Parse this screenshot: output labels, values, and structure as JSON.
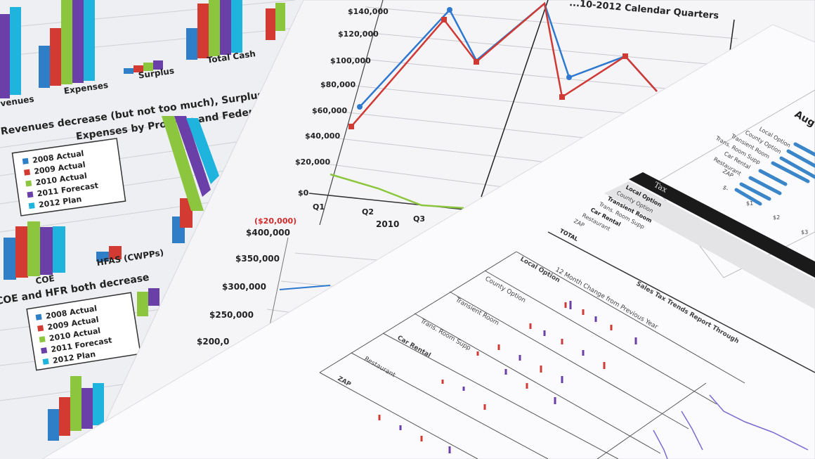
{
  "colors": {
    "series_2008": "#2f7fc8",
    "series_2009": "#d23a32",
    "series_2010": "#8cc63f",
    "series_2011": "#6a3fa8",
    "series_2012": "#1fb4de",
    "line_blue": "#2e78d0",
    "line_red": "#cf3a35",
    "line_green": "#8cc63f",
    "negative_red": "#d42a2a"
  },
  "sheet_left": {
    "top_chart_categories": [
      "venues",
      "Expenses",
      "Surplus",
      "Total Cash"
    ],
    "caption_1": "Revenues decrease (but not too much), Surplus lo",
    "chart_title": "Expenses by Program and Federal",
    "legend": [
      "2008 Actual",
      "2009 Actual",
      "2010 Actual",
      "2011 Forecast",
      "2012 Plan"
    ],
    "categories": [
      "COE",
      "HFAS (CWPPs)"
    ],
    "caption_2": "COE and HFR both decrease",
    "legend_2": [
      "2008 Actual",
      "2009 Actual",
      "2010 Actual",
      "2011 Forecast",
      "2012 Plan"
    ]
  },
  "sheet_middle": {
    "title": "...10-2012 Calendar Quarters",
    "y_ticks": [
      "$140,000",
      "$120,000",
      "$100,000",
      "$80,000",
      "$60,000",
      "$40,000",
      "$20,000",
      "$0",
      "($20,000)"
    ],
    "x_ticks": [
      "Q1",
      "Q2",
      "Q3"
    ],
    "x_group": "2010",
    "y_ticks_2": [
      "$400,000",
      "$350,000",
      "$300,000",
      "$250,000",
      "$200,0"
    ]
  },
  "sheet_right": {
    "aug_title": "Aug",
    "aug_labels": [
      "Local Option",
      "County Option",
      "Transient Room",
      "Trans. Room Supp",
      "Car Rental",
      "Restaurant",
      "ZAP",
      "$-"
    ],
    "aug_axis": [
      "$1",
      "$2",
      "$3"
    ],
    "tax_header": "Tax",
    "tax_rows": [
      "Local Option",
      "County Option",
      "Transient Room",
      "Trans. Room Supp",
      "Car Rental",
      "Restaurant",
      "ZAP",
      "TOTAL"
    ],
    "trend_title": "Sales Tax Trends Report Through",
    "trend_subtitle": "12 Month Change from Previous Year",
    "trend_rows": [
      "Local Option",
      "County Option",
      "Transient Room",
      "Trans. Room Supp",
      "Car Rental",
      "Restaurant",
      "ZAP"
    ]
  }
}
